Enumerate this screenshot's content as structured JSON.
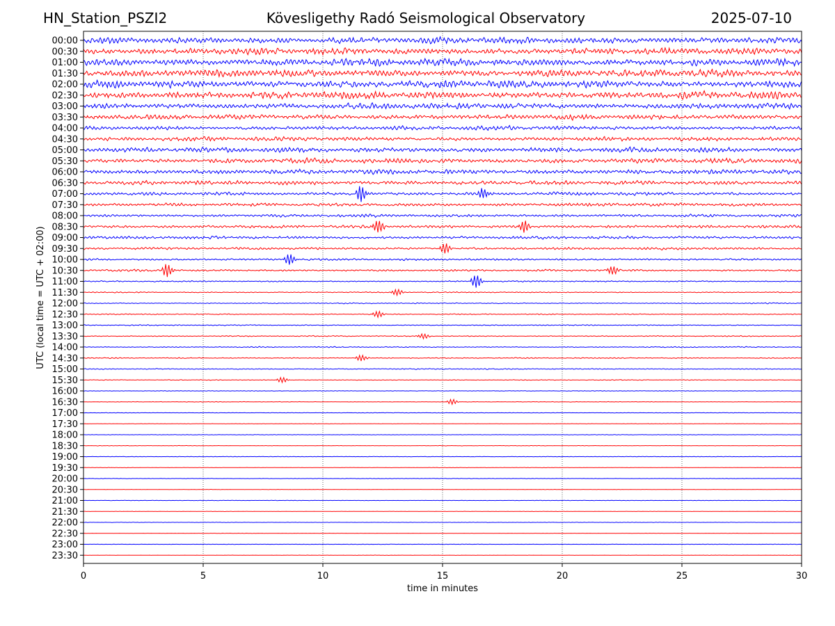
{
  "header": {
    "station": "HN_Station_PSZI2",
    "observatory": "Kövesligethy Radó Seismological Observatory",
    "date": "2025-07-10"
  },
  "chart_data": {
    "type": "line",
    "title": "Kövesligethy Radó Seismological Observatory",
    "xlabel": "time in minutes",
    "ylabel": "UTC (local time = UTC + 02:00)",
    "xlim": [
      0,
      30
    ],
    "x_ticks": [
      0,
      5,
      10,
      15,
      20,
      25,
      30
    ],
    "x_tick_labels": [
      "0",
      "5",
      "10",
      "15",
      "20",
      "25",
      "30"
    ],
    "grid": "vertical dotted at x ticks",
    "colors": [
      "#0000ff",
      "#ff0000"
    ],
    "rows": [
      "00:00",
      "00:30",
      "01:00",
      "01:30",
      "02:00",
      "02:30",
      "03:00",
      "03:30",
      "04:00",
      "04:30",
      "05:00",
      "05:30",
      "06:00",
      "06:30",
      "07:00",
      "07:30",
      "08:00",
      "08:30",
      "09:00",
      "09:30",
      "10:00",
      "10:30",
      "11:00",
      "11:30",
      "12:00",
      "12:30",
      "13:00",
      "13:30",
      "14:00",
      "14:30",
      "15:00",
      "15:30",
      "16:00",
      "16:30",
      "17:00",
      "17:30",
      "18:00",
      "18:30",
      "19:00",
      "19:30",
      "20:00",
      "20:30",
      "21:00",
      "21:30",
      "22:00",
      "22:30",
      "23:00",
      "23:30"
    ],
    "noise_level": [
      8,
      8,
      9,
      9,
      9,
      9,
      7,
      6,
      5,
      5,
      6,
      6,
      6,
      5,
      4,
      4,
      3.5,
      3.5,
      3.5,
      3,
      2.5,
      2.5,
      1.5,
      1.2,
      1.2,
      1.2,
      1.2,
      1.2,
      1.2,
      1.2,
      1.2,
      0.8,
      0.6,
      0.6,
      0.5,
      0.5,
      0.5,
      0.5,
      0.5,
      0.5,
      0.5,
      0.4,
      0.4,
      0.4,
      0.4,
      0.4,
      0.4,
      0.4
    ],
    "events": [
      {
        "row": "07:00",
        "minute": 11.5,
        "amplitude": 12
      },
      {
        "row": "07:00",
        "minute": 16.6,
        "amplitude": 8
      },
      {
        "row": "08:30",
        "minute": 12.2,
        "amplitude": 10
      },
      {
        "row": "08:30",
        "minute": 18.3,
        "amplitude": 9
      },
      {
        "row": "09:30",
        "minute": 15.0,
        "amplitude": 8
      },
      {
        "row": "10:00",
        "minute": 8.5,
        "amplitude": 8
      },
      {
        "row": "10:30",
        "minute": 3.4,
        "amplitude": 10
      },
      {
        "row": "10:30",
        "minute": 22.0,
        "amplitude": 7
      },
      {
        "row": "11:00",
        "minute": 16.3,
        "amplitude": 10
      },
      {
        "row": "11:30",
        "minute": 13.0,
        "amplitude": 5
      },
      {
        "row": "12:30",
        "minute": 12.2,
        "amplitude": 5
      },
      {
        "row": "13:30",
        "minute": 14.1,
        "amplitude": 4
      },
      {
        "row": "14:30",
        "minute": 11.5,
        "amplitude": 5
      },
      {
        "row": "15:30",
        "minute": 8.2,
        "amplitude": 4
      },
      {
        "row": "16:30",
        "minute": 15.3,
        "amplitude": 4
      }
    ]
  }
}
